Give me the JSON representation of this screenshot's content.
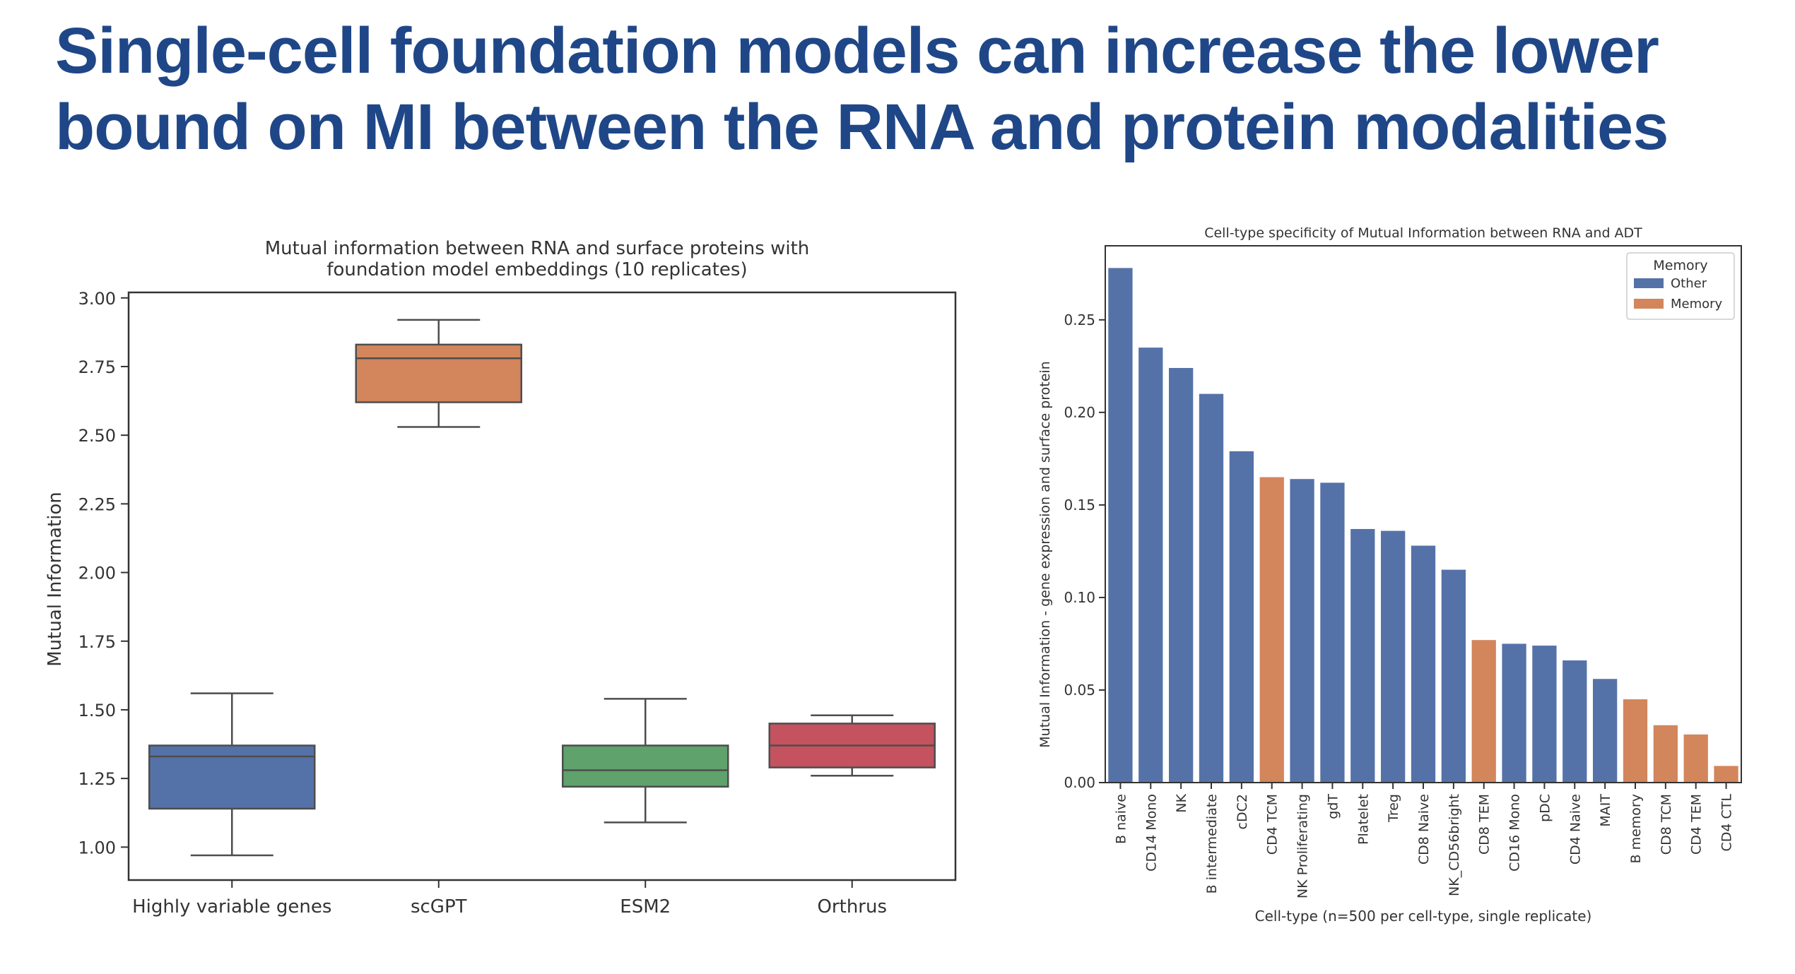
{
  "slide": {
    "title_line1": "Single-cell foundation models can increase the lower",
    "title_line2": "bound on MI between the RNA and protein modalities"
  },
  "colors": {
    "title": "#1f4788",
    "other": "#5572a8",
    "memory": "#d3855b"
  },
  "chart_data": [
    {
      "type": "box",
      "title_line1": "Mutual information between RNA and surface proteins with",
      "title_line2": "foundation model embeddings (10 replicates)",
      "xlabel": "",
      "ylabel": "Mutual Information",
      "ylim": [
        0.88,
        3.02
      ],
      "yticks": [
        "1.00",
        "1.25",
        "1.50",
        "1.75",
        "2.00",
        "2.25",
        "2.50",
        "2.75",
        "3.00"
      ],
      "grid": false,
      "boxes": [
        {
          "label": "Highly variable genes",
          "whisker_low": 0.97,
          "q1": 1.14,
          "median": 1.33,
          "q3": 1.37,
          "whisker_high": 1.56,
          "color": "#5572a8"
        },
        {
          "label": "scGPT",
          "whisker_low": 2.53,
          "q1": 2.62,
          "median": 2.78,
          "q3": 2.83,
          "whisker_high": 2.92,
          "color": "#d3855b"
        },
        {
          "label": "ESM2",
          "whisker_low": 1.09,
          "q1": 1.22,
          "median": 1.28,
          "q3": 1.37,
          "whisker_high": 1.54,
          "color": "#5fa26c"
        },
        {
          "label": "Orthrus",
          "whisker_low": 1.26,
          "q1": 1.29,
          "median": 1.37,
          "q3": 1.45,
          "whisker_high": 1.48,
          "color": "#c4535f"
        }
      ]
    },
    {
      "type": "bar",
      "title": "Cell-type specificity of Mutual Information between RNA and ADT",
      "xlabel": "Cell-type (n=500 per cell-type, single replicate)",
      "ylabel": "Mutual Information - gene expression and surface protein",
      "ylim": [
        0,
        0.29
      ],
      "yticks": [
        "0.00",
        "0.05",
        "0.10",
        "0.15",
        "0.20",
        "0.25"
      ],
      "grid": false,
      "legend": {
        "title": "Memory",
        "position": "top-right",
        "entries": [
          "Other",
          "Memory"
        ]
      },
      "categories": [
        "B naive",
        "CD14 Mono",
        "NK",
        "B intermediate",
        "cDC2",
        "CD4 TCM",
        "NK Proliferating",
        "gdT",
        "Platelet",
        "Treg",
        "CD8 Naive",
        "NK_CD56bright",
        "CD8 TEM",
        "CD16 Mono",
        "pDC",
        "CD4 Naive",
        "MAIT",
        "B memory",
        "CD8 TCM",
        "CD4 TEM",
        "CD4 CTL"
      ],
      "values": [
        0.278,
        0.235,
        0.224,
        0.21,
        0.179,
        0.165,
        0.164,
        0.162,
        0.137,
        0.136,
        0.128,
        0.115,
        0.077,
        0.075,
        0.074,
        0.066,
        0.056,
        0.045,
        0.031,
        0.026,
        0.009
      ],
      "groups": [
        "Other",
        "Other",
        "Other",
        "Other",
        "Other",
        "Memory",
        "Other",
        "Other",
        "Other",
        "Other",
        "Other",
        "Other",
        "Memory",
        "Other",
        "Other",
        "Other",
        "Other",
        "Memory",
        "Memory",
        "Memory",
        "Memory"
      ]
    }
  ]
}
